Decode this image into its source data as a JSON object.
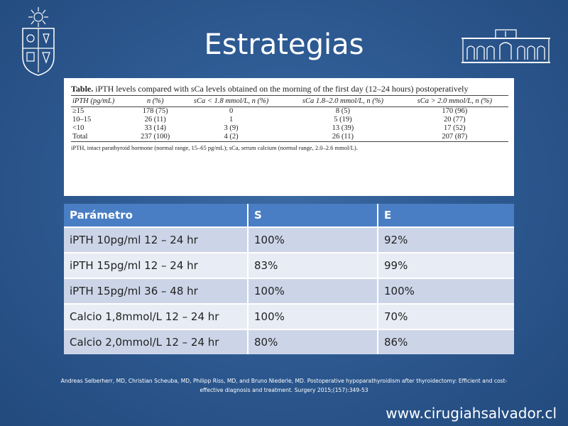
{
  "title": "Estrategias",
  "paper_table": {
    "caption_bold": "Table.",
    "caption_text": " iPTH levels compared with sCa levels obtained on the morning of the first day (12–24 hours) postoperatively",
    "headers": [
      "iPTH (pg/mL)",
      "n (%)",
      "sCa < 1.8 mmol/L, n (%)",
      "sCa 1.8–2.0 mmol/L, n (%)",
      "sCa > 2.0 mmol/L, n (%)"
    ],
    "rows": [
      [
        "≥15",
        "178 (75)",
        "0",
        "8 (5)",
        "170 (96)"
      ],
      [
        "10–15",
        "26 (11)",
        "1",
        "5 (19)",
        "20 (77)"
      ],
      [
        "<10",
        "33 (14)",
        "3 (9)",
        "13 (39)",
        "17 (52)"
      ],
      [
        "Total",
        "237 (100)",
        "4 (2)",
        "26 (11)",
        "207 (87)"
      ]
    ],
    "footnote": "iPTH, intact parathyroid hormone (normal range, 15–65 pg/mL); sCa, serum calcium (normal range, 2.0–2.6 mmol/L)."
  },
  "stats_table": {
    "headers": [
      "Parámetro",
      "S",
      "E"
    ],
    "rows": [
      [
        "iPTH 10pg/ml 12 – 24 hr",
        "100%",
        "92%"
      ],
      [
        "iPTH 15pg/ml 12 – 24 hr",
        "83%",
        "99%"
      ],
      [
        "iPTH 15pg/ml 36 – 48 hr",
        "100%",
        "100%"
      ],
      [
        "Calcio 1,8mmol/L 12 – 24 hr",
        "100%",
        "70%"
      ],
      [
        "Calcio 2,0mmol/L 12 – 24 hr",
        "80%",
        "86%"
      ]
    ]
  },
  "reference": {
    "line1": "Andreas Selberherr, MD, Christian Scheuba, MD, Philipp Riss, MD, and Bruno Niederle, MD. Postoperative hypoparathyroidism after thyroidectomy: Efficient and cost-",
    "line2": "effective diagnosis and treatment. Surgery 2015;(157):349-53"
  },
  "website": "www.cirugiahsalvador.cl",
  "colors": {
    "background": "#2e5a92",
    "table_header": "#4a7ec4",
    "row_odd": "#ccd5e8",
    "row_even": "#e8ecf5"
  },
  "icons": {
    "left_logo": "university-crest-icon",
    "right_logo": "hospital-building-icon"
  }
}
